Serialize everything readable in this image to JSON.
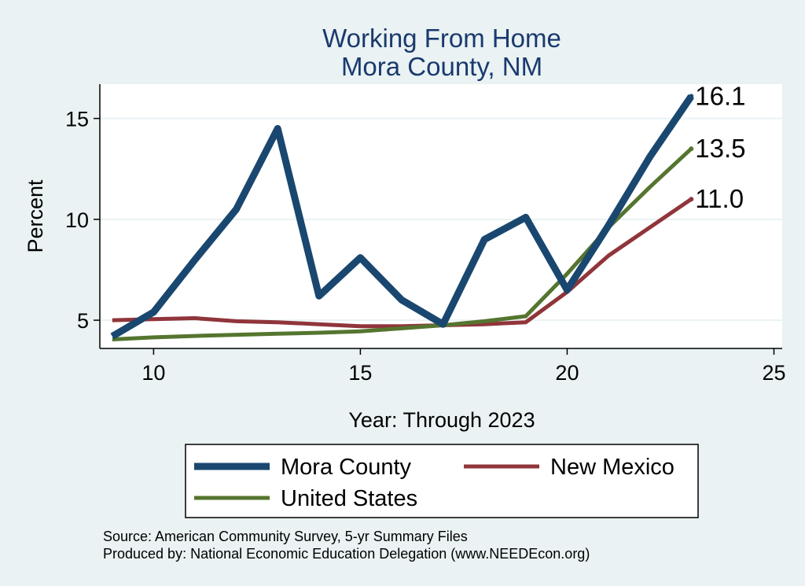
{
  "chart_data": {
    "type": "line",
    "title": "Working From Home",
    "subtitle": "Mora County, NM",
    "xlabel": "Year: Through 2023",
    "ylabel": "Percent",
    "xlim": [
      8.7,
      25.2
    ],
    "ylim": [
      3.6,
      16.7
    ],
    "xticks": [
      10,
      15,
      20,
      25
    ],
    "yticks": [
      5,
      10,
      15
    ],
    "grid": true,
    "legend_position": "bottom",
    "series": [
      {
        "name": "Mora County",
        "color": "#1a476f",
        "width": 9,
        "x": [
          9,
          10,
          11,
          12,
          13,
          14,
          15,
          16,
          17,
          18,
          19,
          20,
          21,
          22,
          23
        ],
        "y": [
          4.2,
          5.4,
          8.0,
          10.5,
          14.5,
          6.2,
          8.1,
          6.0,
          4.8,
          9.0,
          10.1,
          6.5,
          9.7,
          13.1,
          16.1
        ],
        "end_label": "16.1"
      },
      {
        "name": "New Mexico",
        "color": "#90353b",
        "width": 5,
        "x": [
          9,
          10,
          11,
          12,
          13,
          14,
          15,
          16,
          17,
          18,
          19,
          20,
          21,
          22,
          23
        ],
        "y": [
          5.0,
          5.05,
          5.1,
          4.95,
          4.9,
          4.8,
          4.7,
          4.7,
          4.75,
          4.8,
          4.9,
          6.4,
          8.2,
          9.6,
          11.0
        ],
        "end_label": "11.0"
      },
      {
        "name": "United States",
        "color": "#55752f",
        "width": 5,
        "x": [
          9,
          10,
          11,
          12,
          13,
          14,
          15,
          16,
          17,
          18,
          19,
          20,
          21,
          22,
          23
        ],
        "y": [
          4.05,
          4.15,
          4.22,
          4.28,
          4.33,
          4.38,
          4.45,
          4.6,
          4.75,
          4.95,
          5.2,
          7.3,
          9.6,
          11.6,
          13.5
        ],
        "end_label": "13.5"
      }
    ]
  },
  "footer": {
    "source": "Source: American Community Survey, 5-yr Summary Files",
    "produced_by": "Produced by: National Economic Education Delegation (www.NEEDEcon.org)"
  }
}
